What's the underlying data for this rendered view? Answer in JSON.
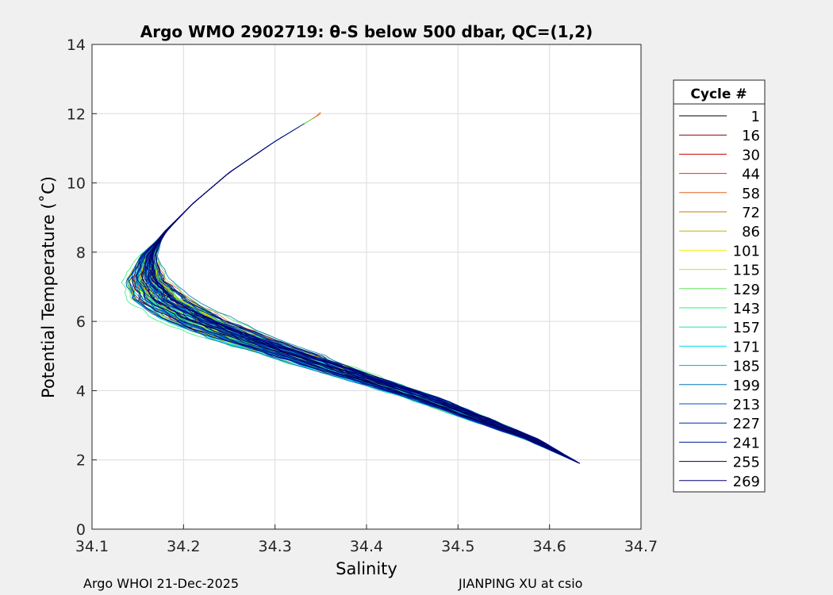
{
  "chart_data": {
    "type": "line",
    "title": "Argo WMO 2902719: θ-S below 500 dbar,  QC=(1,2)",
    "xlabel": "Salinity",
    "ylabel": "Potential Temperature (˚C)",
    "xlim": [
      34.1,
      34.7
    ],
    "ylim": [
      0,
      14
    ],
    "xticks": [
      "34.1",
      "34.2",
      "34.3",
      "34.4",
      "34.5",
      "34.6",
      "34.7"
    ],
    "yticks": [
      "0",
      "2",
      "4",
      "6",
      "8",
      "10",
      "12",
      "14"
    ],
    "grid": true,
    "legend": {
      "title": "Cycle #",
      "placement": "outside-right",
      "entries": [
        {
          "label": "1",
          "color": "#000000"
        },
        {
          "label": "16",
          "color": "#8b0000"
        },
        {
          "label": "30",
          "color": "#cc0000"
        },
        {
          "label": "44",
          "color": "#e63200"
        },
        {
          "label": "58",
          "color": "#e6641e"
        },
        {
          "label": "72",
          "color": "#c87800"
        },
        {
          "label": "86",
          "color": "#c8b400"
        },
        {
          "label": "101",
          "color": "#f0f000"
        },
        {
          "label": "115",
          "color": "#b4f000"
        },
        {
          "label": "129",
          "color": "#64e664"
        },
        {
          "label": "143",
          "color": "#32f078"
        },
        {
          "label": "157",
          "color": "#1ee6b4"
        },
        {
          "label": "171",
          "color": "#00dce6"
        },
        {
          "label": "185",
          "color": "#00aadc"
        },
        {
          "label": "199",
          "color": "#0078b4"
        },
        {
          "label": "213",
          "color": "#0050c8"
        },
        {
          "label": "227",
          "color": "#0028b4"
        },
        {
          "label": "241",
          "color": "#001e96"
        },
        {
          "label": "255",
          "color": "#000050"
        },
        {
          "label": "269",
          "color": "#000078"
        }
      ]
    },
    "series_shape": {
      "note_free": true,
      "deep_end": [
        34.633,
        1.9
      ],
      "envelope_points": [
        [
          34.633,
          1.9
        ],
        [
          34.58,
          2.6
        ],
        [
          34.52,
          3.2
        ],
        [
          34.46,
          3.8
        ],
        [
          34.4,
          4.3
        ],
        [
          34.33,
          4.9
        ],
        [
          34.26,
          5.5
        ],
        [
          34.21,
          6.0
        ],
        [
          34.17,
          6.6
        ],
        [
          34.155,
          7.2
        ],
        [
          34.16,
          7.9
        ],
        [
          34.18,
          8.6
        ],
        [
          34.21,
          9.4
        ],
        [
          34.25,
          10.3
        ],
        [
          34.3,
          11.2
        ],
        [
          34.35,
          12.0
        ]
      ]
    }
  },
  "footer": {
    "left": "Argo WHOI 21-Dec-2025",
    "right": "JIANPING XU at csio"
  }
}
